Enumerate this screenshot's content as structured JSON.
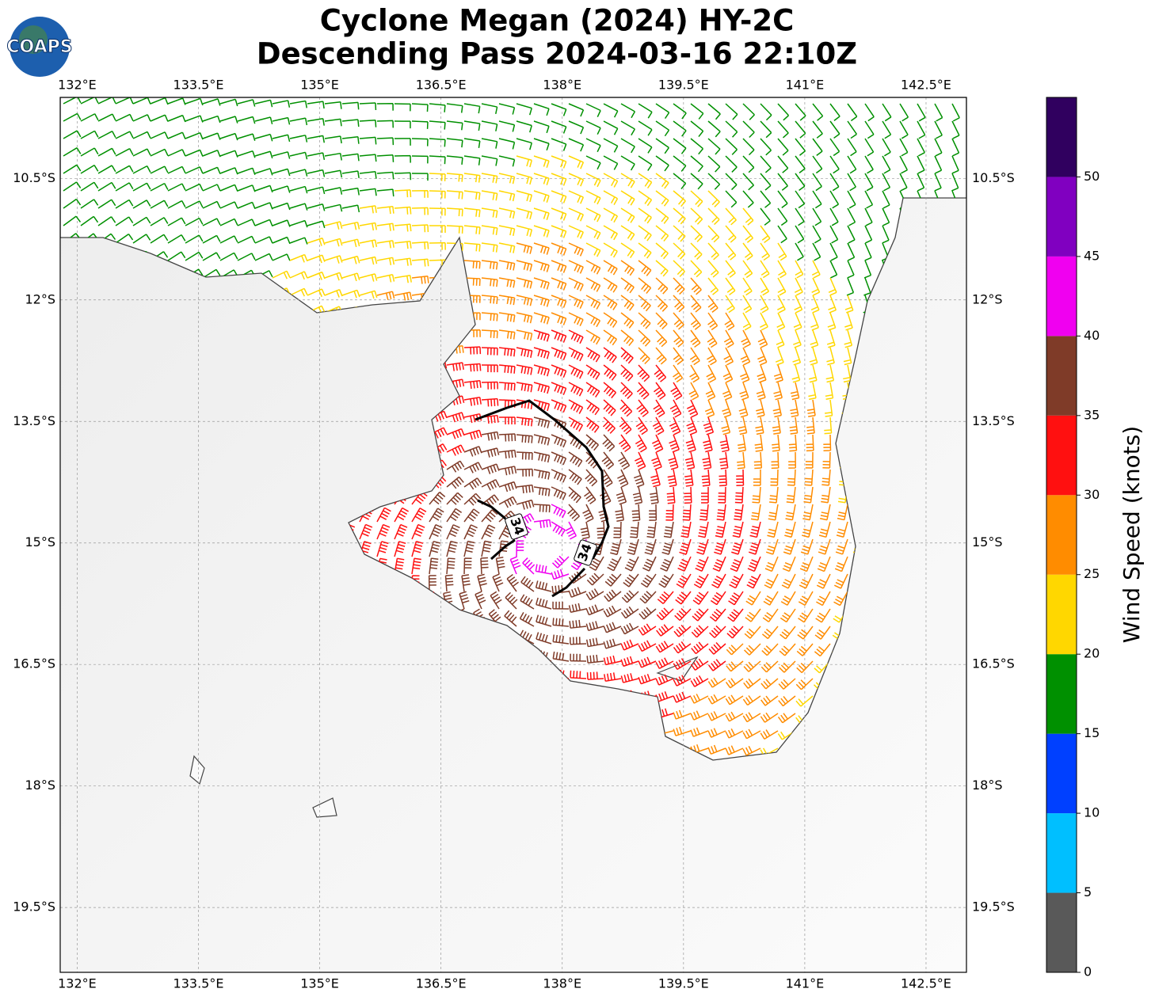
{
  "map": {
    "title": [
      "Cyclone Megan (2024) HY-2C",
      "Descending Pass 2024-03-16 22:10Z"
    ],
    "logo": "COAPS",
    "xlim": [
      131.79,
      143.0
    ],
    "ylim": [
      -20.3,
      -9.5
    ],
    "lon_ticks": [
      {
        "value": 132,
        "label": "132°E"
      },
      {
        "value": 133.5,
        "label": "133.5°E"
      },
      {
        "value": 135,
        "label": "135°E"
      },
      {
        "value": 136.5,
        "label": "136.5°E"
      },
      {
        "value": 138,
        "label": "138°E"
      },
      {
        "value": 139.5,
        "label": "139.5°E"
      },
      {
        "value": 141,
        "label": "141°E"
      },
      {
        "value": 142.5,
        "label": "142.5°E"
      }
    ],
    "lat_ticks": [
      {
        "value": -10.5,
        "label": "10.5°S"
      },
      {
        "value": -12,
        "label": "12°S"
      },
      {
        "value": -13.5,
        "label": "13.5°S"
      },
      {
        "value": -15,
        "label": "15°S"
      },
      {
        "value": -16.5,
        "label": "16.5°S"
      },
      {
        "value": -18,
        "label": "18°S"
      },
      {
        "value": -19.5,
        "label": "19.5°S"
      }
    ],
    "contour_labels": [
      "34",
      "34"
    ],
    "colorbar": {
      "label": "Wind Speed (knots)",
      "lim": [
        0,
        55
      ],
      "bounds": [
        0,
        5,
        10,
        15,
        20,
        25,
        30,
        35,
        40,
        45,
        50,
        55
      ],
      "colors": [
        "#595959",
        "#00bfff",
        "#0040ff",
        "#009000",
        "#ffd700",
        "#ff8c00",
        "#ff1010",
        "#7f3b28",
        "#f000f0",
        "#8000c0",
        "#30005f"
      ],
      "ticks": [
        0,
        5,
        10,
        15,
        20,
        25,
        30,
        35,
        40,
        45,
        50
      ]
    }
  }
}
